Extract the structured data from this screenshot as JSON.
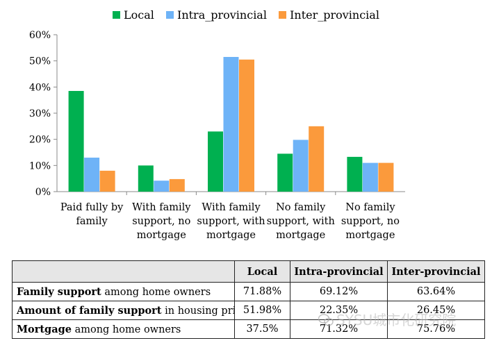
{
  "chart_data": {
    "type": "bar",
    "categories": [
      [
        "Paid fully by",
        "family"
      ],
      [
        "With family",
        "support, no",
        "mortgage"
      ],
      [
        "With family",
        "support, with",
        "mortgage"
      ],
      [
        "No family",
        "support, with",
        "mortgage"
      ],
      [
        "No family",
        "support, no",
        "mortgage"
      ]
    ],
    "series": [
      {
        "name": "Local",
        "color": "#00b050",
        "values": [
          38.5,
          10,
          23,
          14.5,
          13.3
        ]
      },
      {
        "name": "Intra_provincial",
        "color": "#6eb3f7",
        "values": [
          13,
          4.2,
          51.5,
          19.8,
          11
        ]
      },
      {
        "name": "Inter_provincial",
        "color": "#fb9a3c",
        "values": [
          8,
          4.8,
          50.5,
          25,
          11
        ]
      }
    ],
    "ylim": [
      0,
      60
    ],
    "yticks": [
      0,
      10,
      20,
      30,
      40,
      50,
      60
    ],
    "ytick_labels": [
      "0%",
      "10%",
      "20%",
      "30%",
      "40%",
      "50%",
      "60%"
    ],
    "legend": "top",
    "grid": false
  },
  "table": {
    "headers": [
      "",
      "Local",
      "Intra-provincial",
      "Inter-provincial"
    ],
    "rows": [
      {
        "label_bold": "Family support",
        "label_rest": " among home owners",
        "values": [
          "71.88%",
          "69.12%",
          "63.64%"
        ]
      },
      {
        "label_bold": "Amount of family support",
        "label_rest": " in housing price",
        "values": [
          "51.98%",
          "22.35%",
          "26.45%"
        ]
      },
      {
        "label_bold": "Mortgage",
        "label_rest": " among home owners",
        "values": [
          "37.5%",
          "71.32%",
          "75.76%"
        ]
      }
    ]
  },
  "watermark": "SYSU城市化研究院",
  "watermark_icon": "wechat-icon"
}
